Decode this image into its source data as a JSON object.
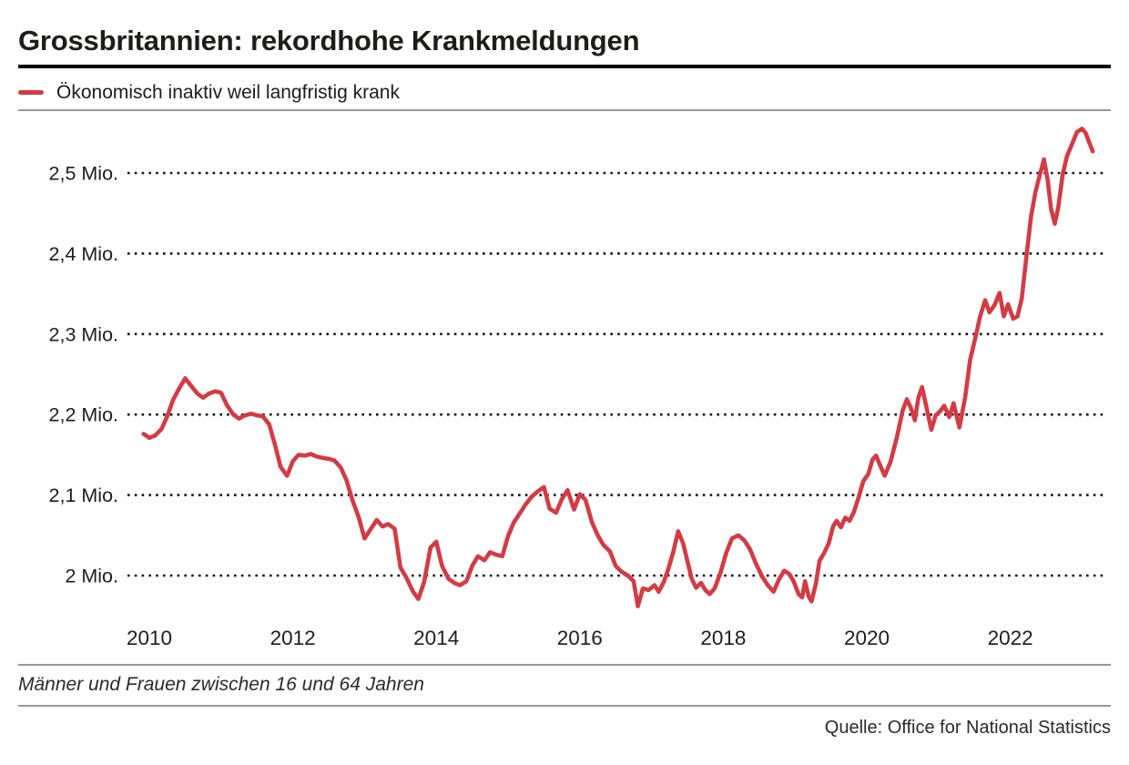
{
  "header": {
    "title": "Grossbritannien: rekordhohe Krankmeldungen"
  },
  "legend": {
    "label": "Ökonomisch inaktiv weil langfristig krank",
    "swatch_color": "#d23c45"
  },
  "footer": {
    "note": "Männer und Frauen zwischen 16 und 64 Jahren",
    "source": "Quelle: Office for National Statistics"
  },
  "chart_data": {
    "type": "line",
    "title": "Grossbritannien: rekordhohe Krankmeldungen",
    "xlabel": "",
    "ylabel": "",
    "grid": "horizontal-dotted",
    "legend_position": "top-left",
    "xlim": [
      2009.85,
      2023.3
    ],
    "ylim": [
      1.95,
      2.57
    ],
    "x_ticks": [
      {
        "label": "2010",
        "value": 2010
      },
      {
        "label": "2012",
        "value": 2012
      },
      {
        "label": "2014",
        "value": 2014
      },
      {
        "label": "2016",
        "value": 2016
      },
      {
        "label": "2018",
        "value": 2018
      },
      {
        "label": "2020",
        "value": 2020
      },
      {
        "label": "2022",
        "value": 2022
      }
    ],
    "y_ticks": [
      {
        "label": "2,5 Mio.",
        "value": 2.5
      },
      {
        "label": "2,4 Mio.",
        "value": 2.4
      },
      {
        "label": "2,3 Mio.",
        "value": 2.3
      },
      {
        "label": "2,2 Mio.",
        "value": 2.2
      },
      {
        "label": "2,1 Mio.",
        "value": 2.1
      },
      {
        "label": "2 Mio.",
        "value": 2.0
      }
    ],
    "series": [
      {
        "name": "Ökonomisch inaktiv weil langfristig krank",
        "color": "#d23c45",
        "unit": "Mio.",
        "points": [
          [
            2009.92,
            2.176
          ],
          [
            2010.0,
            2.171
          ],
          [
            2010.08,
            2.174
          ],
          [
            2010.17,
            2.182
          ],
          [
            2010.25,
            2.198
          ],
          [
            2010.33,
            2.218
          ],
          [
            2010.42,
            2.233
          ],
          [
            2010.5,
            2.245
          ],
          [
            2010.58,
            2.236
          ],
          [
            2010.67,
            2.226
          ],
          [
            2010.75,
            2.221
          ],
          [
            2010.83,
            2.226
          ],
          [
            2010.92,
            2.229
          ],
          [
            2011.0,
            2.227
          ],
          [
            2011.08,
            2.212
          ],
          [
            2011.17,
            2.2
          ],
          [
            2011.25,
            2.195
          ],
          [
            2011.33,
            2.199
          ],
          [
            2011.42,
            2.201
          ],
          [
            2011.5,
            2.199
          ],
          [
            2011.58,
            2.198
          ],
          [
            2011.67,
            2.188
          ],
          [
            2011.75,
            2.163
          ],
          [
            2011.83,
            2.135
          ],
          [
            2011.92,
            2.124
          ],
          [
            2012.0,
            2.142
          ],
          [
            2012.08,
            2.15
          ],
          [
            2012.17,
            2.149
          ],
          [
            2012.25,
            2.151
          ],
          [
            2012.33,
            2.148
          ],
          [
            2012.42,
            2.146
          ],
          [
            2012.5,
            2.145
          ],
          [
            2012.58,
            2.143
          ],
          [
            2012.67,
            2.134
          ],
          [
            2012.75,
            2.118
          ],
          [
            2012.83,
            2.094
          ],
          [
            2012.92,
            2.072
          ],
          [
            2013.0,
            2.046
          ],
          [
            2013.08,
            2.057
          ],
          [
            2013.17,
            2.069
          ],
          [
            2013.25,
            2.061
          ],
          [
            2013.33,
            2.064
          ],
          [
            2013.42,
            2.058
          ],
          [
            2013.5,
            2.01
          ],
          [
            2013.58,
            1.998
          ],
          [
            2013.67,
            1.981
          ],
          [
            2013.75,
            1.971
          ],
          [
            2013.83,
            1.992
          ],
          [
            2013.92,
            2.035
          ],
          [
            2014.0,
            2.042
          ],
          [
            2014.08,
            2.012
          ],
          [
            2014.17,
            1.996
          ],
          [
            2014.25,
            1.991
          ],
          [
            2014.33,
            1.988
          ],
          [
            2014.42,
            1.993
          ],
          [
            2014.5,
            2.012
          ],
          [
            2014.58,
            2.024
          ],
          [
            2014.67,
            2.019
          ],
          [
            2014.75,
            2.029
          ],
          [
            2014.83,
            2.026
          ],
          [
            2014.92,
            2.024
          ],
          [
            2015.0,
            2.049
          ],
          [
            2015.08,
            2.066
          ],
          [
            2015.17,
            2.078
          ],
          [
            2015.25,
            2.089
          ],
          [
            2015.33,
            2.098
          ],
          [
            2015.42,
            2.105
          ],
          [
            2015.5,
            2.11
          ],
          [
            2015.58,
            2.083
          ],
          [
            2015.67,
            2.078
          ],
          [
            2015.75,
            2.095
          ],
          [
            2015.83,
            2.106
          ],
          [
            2015.92,
            2.082
          ],
          [
            2016.0,
            2.101
          ],
          [
            2016.08,
            2.094
          ],
          [
            2016.17,
            2.066
          ],
          [
            2016.25,
            2.05
          ],
          [
            2016.33,
            2.038
          ],
          [
            2016.42,
            2.03
          ],
          [
            2016.5,
            2.012
          ],
          [
            2016.58,
            2.005
          ],
          [
            2016.67,
            2.0
          ],
          [
            2016.75,
            1.993
          ],
          [
            2016.81,
            1.962
          ],
          [
            2016.88,
            1.984
          ],
          [
            2016.96,
            1.982
          ],
          [
            2017.04,
            1.988
          ],
          [
            2017.1,
            1.98
          ],
          [
            2017.17,
            1.992
          ],
          [
            2017.23,
            2.007
          ],
          [
            2017.3,
            2.028
          ],
          [
            2017.37,
            2.055
          ],
          [
            2017.44,
            2.04
          ],
          [
            2017.5,
            2.018
          ],
          [
            2017.56,
            1.996
          ],
          [
            2017.62,
            1.985
          ],
          [
            2017.69,
            1.991
          ],
          [
            2017.75,
            1.982
          ],
          [
            2017.81,
            1.977
          ],
          [
            2017.88,
            1.984
          ],
          [
            2017.96,
            2.003
          ],
          [
            2018.04,
            2.028
          ],
          [
            2018.12,
            2.046
          ],
          [
            2018.21,
            2.05
          ],
          [
            2018.29,
            2.044
          ],
          [
            2018.37,
            2.033
          ],
          [
            2018.46,
            2.014
          ],
          [
            2018.54,
            1.999
          ],
          [
            2018.62,
            1.988
          ],
          [
            2018.7,
            1.98
          ],
          [
            2018.78,
            1.996
          ],
          [
            2018.85,
            2.006
          ],
          [
            2018.92,
            2.002
          ],
          [
            2018.98,
            1.993
          ],
          [
            2019.05,
            1.977
          ],
          [
            2019.1,
            1.973
          ],
          [
            2019.14,
            1.993
          ],
          [
            2019.19,
            1.974
          ],
          [
            2019.23,
            1.968
          ],
          [
            2019.29,
            1.99
          ],
          [
            2019.34,
            2.018
          ],
          [
            2019.4,
            2.027
          ],
          [
            2019.47,
            2.04
          ],
          [
            2019.53,
            2.061
          ],
          [
            2019.58,
            2.068
          ],
          [
            2019.64,
            2.06
          ],
          [
            2019.7,
            2.072
          ],
          [
            2019.76,
            2.068
          ],
          [
            2019.82,
            2.079
          ],
          [
            2019.89,
            2.098
          ],
          [
            2019.95,
            2.117
          ],
          [
            2020.02,
            2.126
          ],
          [
            2020.08,
            2.144
          ],
          [
            2020.13,
            2.149
          ],
          [
            2020.19,
            2.136
          ],
          [
            2020.25,
            2.124
          ],
          [
            2020.33,
            2.141
          ],
          [
            2020.42,
            2.172
          ],
          [
            2020.5,
            2.205
          ],
          [
            2020.56,
            2.219
          ],
          [
            2020.62,
            2.207
          ],
          [
            2020.67,
            2.193
          ],
          [
            2020.72,
            2.221
          ],
          [
            2020.77,
            2.234
          ],
          [
            2020.83,
            2.21
          ],
          [
            2020.9,
            2.181
          ],
          [
            2020.96,
            2.199
          ],
          [
            2021.02,
            2.204
          ],
          [
            2021.08,
            2.211
          ],
          [
            2021.15,
            2.197
          ],
          [
            2021.21,
            2.214
          ],
          [
            2021.29,
            2.184
          ],
          [
            2021.37,
            2.221
          ],
          [
            2021.44,
            2.268
          ],
          [
            2021.51,
            2.294
          ],
          [
            2021.58,
            2.322
          ],
          [
            2021.65,
            2.342
          ],
          [
            2021.71,
            2.327
          ],
          [
            2021.78,
            2.336
          ],
          [
            2021.85,
            2.351
          ],
          [
            2021.91,
            2.322
          ],
          [
            2021.97,
            2.337
          ],
          [
            2022.04,
            2.319
          ],
          [
            2022.1,
            2.322
          ],
          [
            2022.16,
            2.344
          ],
          [
            2022.23,
            2.4
          ],
          [
            2022.29,
            2.447
          ],
          [
            2022.35,
            2.476
          ],
          [
            2022.41,
            2.497
          ],
          [
            2022.47,
            2.517
          ],
          [
            2022.52,
            2.492
          ],
          [
            2022.57,
            2.455
          ],
          [
            2022.62,
            2.437
          ],
          [
            2022.67,
            2.458
          ],
          [
            2022.73,
            2.498
          ],
          [
            2022.79,
            2.521
          ],
          [
            2022.86,
            2.536
          ],
          [
            2022.93,
            2.551
          ],
          [
            2023.0,
            2.555
          ],
          [
            2023.05,
            2.55
          ],
          [
            2023.1,
            2.538
          ],
          [
            2023.15,
            2.527
          ]
        ]
      }
    ]
  }
}
